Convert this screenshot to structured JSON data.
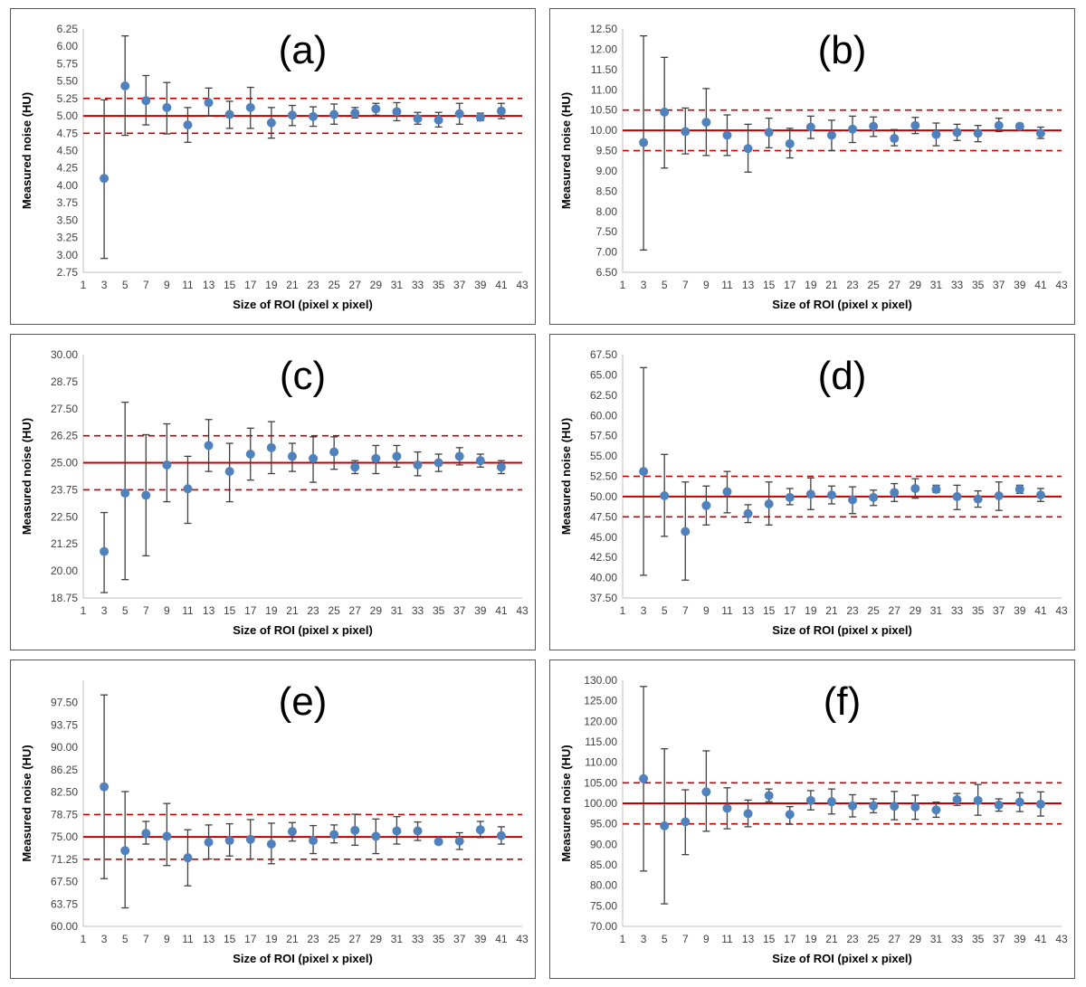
{
  "colors": {
    "point": "#4f81bd",
    "reference": "#c00000",
    "error_bar": "#404040",
    "frame": "#595959"
  },
  "chart_data": [
    {
      "title": "(a)",
      "type": "scatter",
      "xlabel": "Size of ROI (pixel x pixel)",
      "ylabel": "Measured noise (HU)",
      "xlim": [
        1,
        43
      ],
      "xticks": [
        "1",
        "3",
        "5",
        "7",
        "9",
        "11",
        "13",
        "15",
        "17",
        "19",
        "21",
        "23",
        "25",
        "27",
        "29",
        "31",
        "33",
        "35",
        "37",
        "39",
        "41",
        "43"
      ],
      "ylim": [
        2.75,
        6.25
      ],
      "yticks": [
        "2.75",
        "3.00",
        "3.25",
        "3.50",
        "3.75",
        "4.00",
        "4.25",
        "4.50",
        "4.75",
        "5.00",
        "5.25",
        "5.50",
        "5.75",
        "6.00",
        "6.25"
      ],
      "reference_line": 5.0,
      "tolerance_lines": [
        4.75,
        5.25
      ],
      "grid": false,
      "legend": "none",
      "x": [
        3,
        5,
        7,
        9,
        11,
        13,
        15,
        17,
        19,
        21,
        23,
        25,
        27,
        29,
        31,
        33,
        35,
        37,
        39,
        41
      ],
      "y": [
        4.1,
        5.43,
        5.22,
        5.12,
        4.87,
        5.19,
        5.02,
        5.12,
        4.9,
        5.01,
        4.99,
        5.02,
        5.04,
        5.1,
        5.06,
        4.96,
        4.94,
        5.03,
        4.98,
        5.07
      ],
      "err_low": [
        2.95,
        4.72,
        4.87,
        4.74,
        4.62,
        5.0,
        4.82,
        4.82,
        4.68,
        4.86,
        4.85,
        4.88,
        4.97,
        5.01,
        4.93,
        4.88,
        4.84,
        4.88,
        4.93,
        4.96
      ],
      "err_high": [
        5.23,
        6.15,
        5.58,
        5.48,
        5.12,
        5.4,
        5.21,
        5.41,
        5.12,
        5.15,
        5.13,
        5.17,
        5.12,
        5.18,
        5.19,
        5.05,
        5.05,
        5.18,
        5.04,
        5.18
      ]
    },
    {
      "title": "(b)",
      "type": "scatter",
      "xlabel": "Size of ROI (pixel x pixel)",
      "ylabel": "Measured noise (HU)",
      "xlim": [
        1,
        43
      ],
      "xticks": [
        "1",
        "3",
        "5",
        "7",
        "9",
        "11",
        "13",
        "15",
        "17",
        "19",
        "21",
        "23",
        "25",
        "27",
        "29",
        "31",
        "33",
        "35",
        "37",
        "39",
        "41",
        "43"
      ],
      "ylim": [
        6.5,
        12.5
      ],
      "yticks": [
        "6.50",
        "7.00",
        "7.50",
        "8.00",
        "8.50",
        "9.00",
        "9.50",
        "10.00",
        "10.50",
        "11.00",
        "11.50",
        "12.00",
        "12.50"
      ],
      "reference_line": 10.0,
      "tolerance_lines": [
        9.5,
        10.5
      ],
      "grid": false,
      "legend": "none",
      "x": [
        3,
        5,
        7,
        9,
        11,
        13,
        15,
        17,
        19,
        21,
        23,
        25,
        27,
        29,
        31,
        33,
        35,
        37,
        39,
        41
      ],
      "y": [
        9.7,
        10.45,
        9.97,
        10.2,
        9.88,
        9.55,
        9.95,
        9.67,
        10.08,
        9.88,
        10.03,
        10.1,
        9.8,
        10.12,
        9.9,
        9.95,
        9.93,
        10.12,
        10.1,
        9.93
      ],
      "err_low": [
        7.05,
        9.07,
        9.42,
        9.38,
        9.38,
        8.97,
        9.57,
        9.32,
        9.8,
        9.5,
        9.7,
        9.85,
        9.62,
        9.92,
        9.62,
        9.75,
        9.72,
        9.97,
        10.03,
        9.8
      ],
      "err_high": [
        12.33,
        11.8,
        10.55,
        11.03,
        10.38,
        10.15,
        10.3,
        10.05,
        10.35,
        10.25,
        10.35,
        10.33,
        10.02,
        10.32,
        10.18,
        10.15,
        10.12,
        10.3,
        10.17,
        10.08
      ]
    },
    {
      "title": "(c)",
      "type": "scatter",
      "xlabel": "Size of ROI (pixel x pixel)",
      "ylabel": "Measured noise (HU)",
      "xlim": [
        1,
        43
      ],
      "xticks": [
        "1",
        "3",
        "5",
        "7",
        "9",
        "11",
        "13",
        "15",
        "17",
        "19",
        "21",
        "23",
        "25",
        "27",
        "29",
        "31",
        "33",
        "35",
        "37",
        "39",
        "41",
        "43"
      ],
      "ylim": [
        18.75,
        30.0
      ],
      "yticks": [
        "18.75",
        "20.00",
        "21.25",
        "22.50",
        "23.75",
        "25.00",
        "26.25",
        "27.50",
        "28.75",
        "30.00"
      ],
      "reference_line": 25.0,
      "tolerance_lines": [
        23.75,
        26.25
      ],
      "grid": false,
      "legend": "none",
      "x": [
        3,
        5,
        7,
        9,
        11,
        13,
        15,
        17,
        19,
        21,
        23,
        25,
        27,
        29,
        31,
        33,
        35,
        37,
        39,
        41
      ],
      "y": [
        20.9,
        23.6,
        23.5,
        24.9,
        23.8,
        25.8,
        24.6,
        25.4,
        25.7,
        25.3,
        25.2,
        25.5,
        24.8,
        25.2,
        25.3,
        24.9,
        25.0,
        25.3,
        25.1,
        24.8
      ],
      "err_low": [
        19.0,
        19.6,
        20.7,
        23.2,
        22.2,
        24.6,
        23.2,
        24.2,
        24.5,
        24.6,
        24.1,
        24.7,
        24.5,
        24.5,
        24.8,
        24.4,
        24.6,
        24.9,
        24.8,
        24.5
      ],
      "err_high": [
        22.7,
        27.8,
        26.3,
        26.8,
        25.3,
        27.0,
        25.9,
        26.6,
        26.9,
        25.9,
        26.2,
        26.2,
        25.1,
        25.8,
        25.8,
        25.5,
        25.4,
        25.7,
        25.4,
        25.1
      ]
    },
    {
      "title": "(d)",
      "type": "scatter",
      "xlabel": "Size of ROI (pixel x pixel)",
      "ylabel": "Measured noise (HU)",
      "xlim": [
        1,
        43
      ],
      "xticks": [
        "1",
        "3",
        "5",
        "7",
        "9",
        "11",
        "13",
        "15",
        "17",
        "19",
        "21",
        "23",
        "25",
        "27",
        "29",
        "31",
        "33",
        "35",
        "37",
        "39",
        "41",
        "43"
      ],
      "ylim": [
        37.5,
        67.5
      ],
      "yticks": [
        "37.50",
        "40.00",
        "42.50",
        "45.00",
        "47.50",
        "50.00",
        "52.50",
        "55.00",
        "57.50",
        "60.00",
        "62.50",
        "65.00",
        "67.50"
      ],
      "reference_line": 50.0,
      "tolerance_lines": [
        47.5,
        52.5
      ],
      "grid": false,
      "legend": "none",
      "x": [
        3,
        5,
        7,
        9,
        11,
        13,
        15,
        17,
        19,
        21,
        23,
        25,
        27,
        29,
        31,
        33,
        35,
        37,
        39,
        41
      ],
      "y": [
        53.1,
        50.1,
        45.7,
        48.9,
        50.6,
        47.9,
        49.1,
        49.9,
        50.3,
        50.2,
        49.6,
        49.9,
        50.5,
        51.0,
        50.9,
        50.0,
        49.7,
        50.1,
        50.9,
        50.2
      ],
      "err_low": [
        40.3,
        45.1,
        39.7,
        46.5,
        48.0,
        46.8,
        46.5,
        49.0,
        48.4,
        49.1,
        47.9,
        48.9,
        49.4,
        49.8,
        50.5,
        48.4,
        48.7,
        48.3,
        50.4,
        49.4
      ],
      "err_high": [
        65.9,
        55.2,
        51.8,
        51.3,
        53.1,
        49.0,
        51.8,
        51.0,
        52.3,
        51.3,
        51.2,
        50.8,
        51.6,
        52.2,
        51.4,
        51.4,
        50.7,
        51.8,
        51.4,
        51.0
      ]
    },
    {
      "title": "(e)",
      "type": "scatter",
      "xlabel": "Size of ROI (pixel x pixel)",
      "ylabel": "Measured noise (HU)",
      "xlim": [
        1,
        43
      ],
      "xticks": [
        "1",
        "3",
        "5",
        "7",
        "9",
        "11",
        "13",
        "15",
        "17",
        "19",
        "21",
        "23",
        "25",
        "27",
        "29",
        "31",
        "33",
        "35",
        "37",
        "39",
        "41",
        "43"
      ],
      "ylim": [
        60.0,
        101.25
      ],
      "yticks": [
        "60.00",
        "63.75",
        "67.50",
        "71.25",
        "75.00",
        "78.75",
        "82.50",
        "86.25",
        "90.00",
        "93.75",
        "97.50"
      ],
      "reference_line": 75.0,
      "tolerance_lines": [
        71.25,
        78.75
      ],
      "grid": false,
      "legend": "none",
      "x": [
        3,
        5,
        7,
        9,
        11,
        13,
        15,
        17,
        19,
        21,
        23,
        25,
        27,
        29,
        31,
        33,
        35,
        37,
        39,
        41
      ],
      "y": [
        83.4,
        72.7,
        75.6,
        75.1,
        71.5,
        74.1,
        74.4,
        74.6,
        73.8,
        75.9,
        74.4,
        75.4,
        76.1,
        75.1,
        76.0,
        76.0,
        74.2,
        74.3,
        76.2,
        75.2
      ],
      "err_low": [
        68.0,
        63.1,
        73.8,
        70.2,
        66.8,
        71.3,
        71.8,
        71.3,
        70.5,
        74.3,
        72.2,
        74.0,
        73.6,
        72.2,
        73.8,
        74.4,
        73.8,
        72.9,
        74.9,
        73.8
      ],
      "err_high": [
        98.8,
        82.6,
        77.6,
        80.6,
        76.2,
        77.0,
        77.2,
        77.9,
        77.3,
        77.4,
        76.9,
        77.0,
        78.8,
        78.0,
        78.4,
        77.5,
        74.6,
        75.7,
        77.6,
        76.7
      ]
    },
    {
      "title": "(f)",
      "type": "scatter",
      "xlabel": "Size of ROI (pixel x pixel)",
      "ylabel": "Measured noise (HU)",
      "xlim": [
        1,
        43
      ],
      "xticks": [
        "1",
        "3",
        "5",
        "7",
        "9",
        "11",
        "13",
        "15",
        "17",
        "19",
        "21",
        "23",
        "25",
        "27",
        "29",
        "31",
        "33",
        "35",
        "37",
        "39",
        "41",
        "43"
      ],
      "ylim": [
        70.0,
        130.0
      ],
      "yticks": [
        "70.00",
        "75.00",
        "80.00",
        "85.00",
        "90.00",
        "95.00",
        "100.00",
        "105.00",
        "110.00",
        "115.00",
        "120.00",
        "125.00",
        "130.00"
      ],
      "reference_line": 100.0,
      "tolerance_lines": [
        95.0,
        105.0
      ],
      "grid": false,
      "legend": "none",
      "x": [
        3,
        5,
        7,
        9,
        11,
        13,
        15,
        17,
        19,
        21,
        23,
        25,
        27,
        29,
        31,
        33,
        35,
        37,
        39,
        41
      ],
      "y": [
        106.0,
        94.5,
        95.5,
        102.8,
        98.8,
        97.5,
        101.9,
        97.3,
        100.7,
        100.4,
        99.4,
        99.4,
        99.3,
        99.1,
        98.4,
        100.9,
        100.7,
        99.6,
        100.3,
        99.8
      ],
      "err_low": [
        83.5,
        75.5,
        87.5,
        93.2,
        93.8,
        94.3,
        100.4,
        94.9,
        98.4,
        97.4,
        96.7,
        97.7,
        96.0,
        96.1,
        96.6,
        99.5,
        97.1,
        98.1,
        98.0,
        96.9
      ],
      "err_high": [
        128.5,
        113.3,
        103.3,
        112.8,
        103.8,
        100.8,
        103.5,
        99.2,
        103.1,
        103.5,
        102.1,
        101.1,
        102.9,
        102.0,
        100.3,
        102.4,
        104.6,
        101.1,
        102.6,
        102.8
      ]
    }
  ]
}
